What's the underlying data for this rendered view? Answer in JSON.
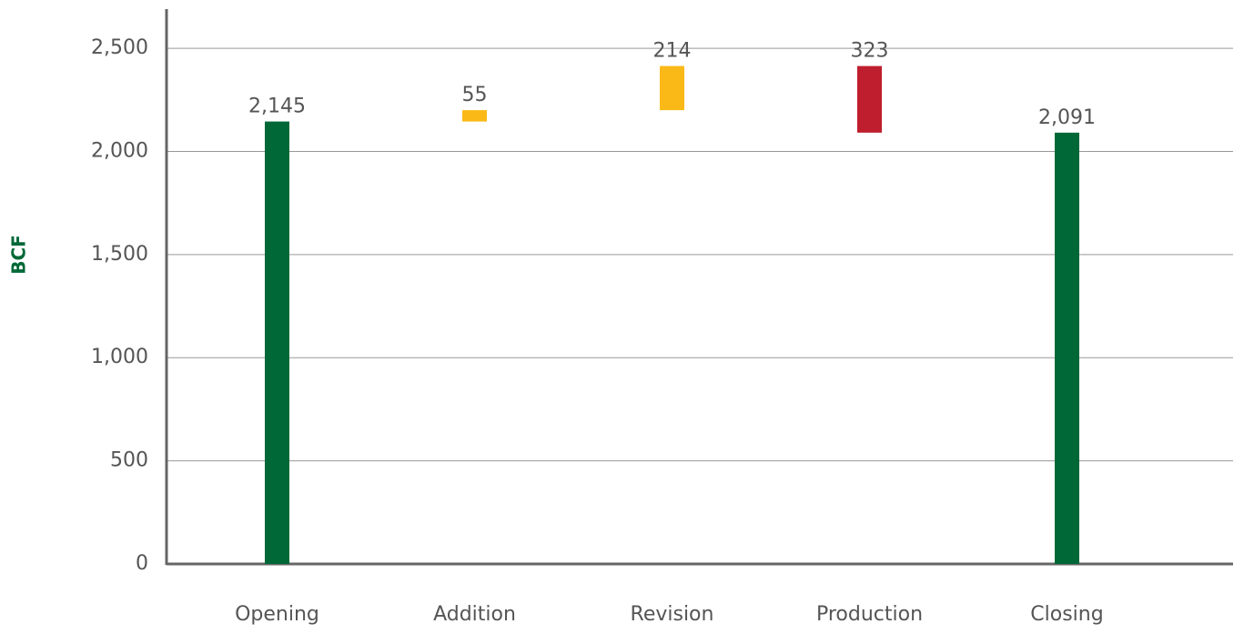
{
  "chart_data": {
    "type": "waterfall",
    "y_label": "BCF",
    "categories": [
      "Opening",
      "Addition",
      "Revision",
      "Production",
      "Closing"
    ],
    "values": [
      2145,
      55,
      214,
      -323,
      2091
    ],
    "value_labels": [
      "2,145",
      "55",
      "214",
      "323",
      "2,091"
    ],
    "measures": [
      "total",
      "relative",
      "relative",
      "relative",
      "total"
    ],
    "colors": [
      "#006837",
      "#fbb917",
      "#fbb917",
      "#be1e2d",
      "#006837"
    ],
    "ylim": [
      0,
      2690
    ],
    "yticks": [
      0,
      500,
      {
        "value": 1000,
        "label": "1,000"
      },
      {
        "value": 1500,
        "label": "1,500"
      },
      {
        "value": 2000,
        "label": "2,000"
      },
      {
        "value": 2500,
        "label": "2,500"
      }
    ],
    "grid": true
  }
}
